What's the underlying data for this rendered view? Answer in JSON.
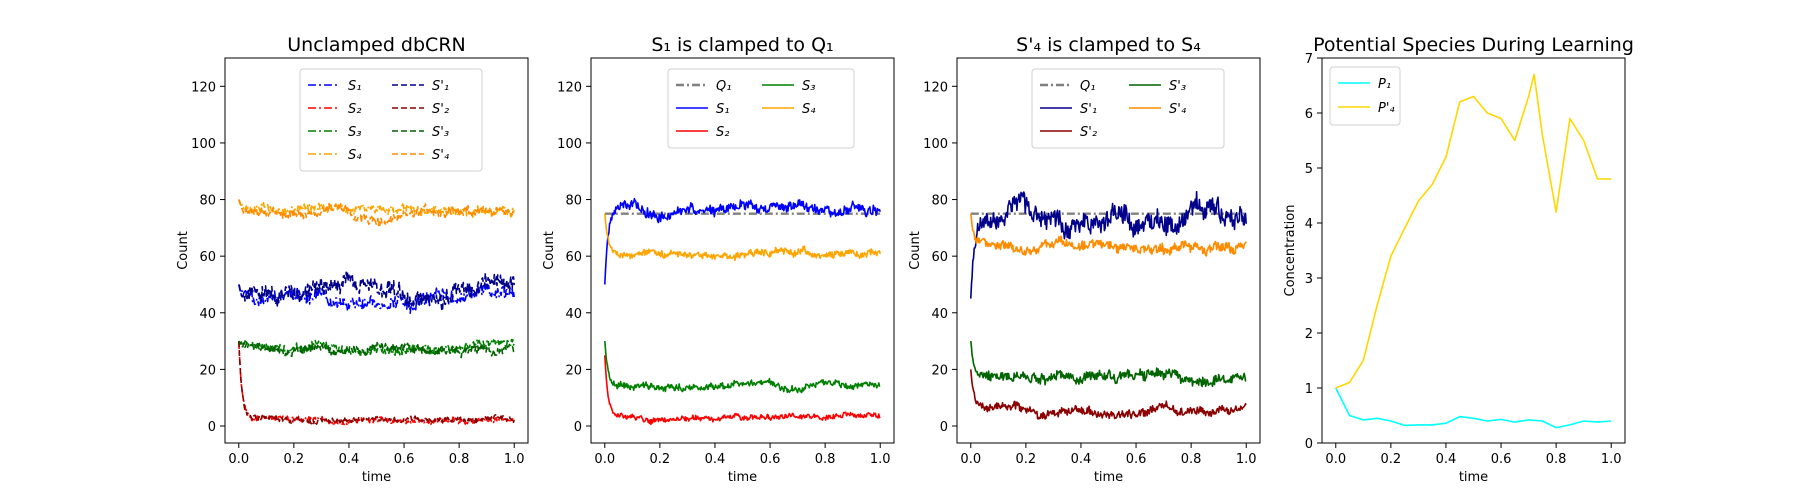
{
  "chart_data": [
    {
      "type": "line",
      "title": "Unclamped dbCRN",
      "xlabel": "time",
      "ylabel": "Count",
      "xlim": [
        -0.05,
        1.05
      ],
      "ylim": [
        -6,
        130
      ],
      "xticks": [
        "0.0",
        "0.2",
        "0.4",
        "0.6",
        "0.8",
        "1.0"
      ],
      "yticks": [
        "0",
        "20",
        "40",
        "60",
        "80",
        "100",
        "120"
      ],
      "legend": {
        "placement": "upper center",
        "columns": 2
      },
      "series": [
        {
          "name": "S₁",
          "color": "#0000ff",
          "dash": "dashdot",
          "start": 50,
          "level": 45,
          "noise": 4
        },
        {
          "name": "S₂",
          "color": "#ff0000",
          "dash": "dashdot",
          "start": 30,
          "level": 2,
          "noise": 1.5
        },
        {
          "name": "S₃",
          "color": "#008000",
          "dash": "dashdot",
          "start": 30,
          "level": 28,
          "noise": 2.5
        },
        {
          "name": "S₄",
          "color": "#ffa500",
          "dash": "dashdot",
          "start": 80,
          "level": 76,
          "noise": 2.5
        },
        {
          "name": "S'₁",
          "color": "#00008b",
          "dash": "dashed",
          "start": 50,
          "level": 47,
          "noise": 5
        },
        {
          "name": "S'₂",
          "color": "#8b0000",
          "dash": "dashed",
          "start": 30,
          "level": 2,
          "noise": 1.5
        },
        {
          "name": "S'₃",
          "color": "#006400",
          "dash": "dashed",
          "start": 30,
          "level": 27,
          "noise": 2.5
        },
        {
          "name": "S'₄",
          "color": "#ff8c00",
          "dash": "dashed",
          "start": 80,
          "level": 75,
          "noise": 2.5
        }
      ]
    },
    {
      "type": "line",
      "title": "S₁ is clamped to Q₁",
      "xlabel": "time",
      "ylabel": "Count",
      "xlim": [
        -0.05,
        1.05
      ],
      "ylim": [
        -6,
        130
      ],
      "xticks": [
        "0.0",
        "0.2",
        "0.4",
        "0.6",
        "0.8",
        "1.0"
      ],
      "yticks": [
        "0",
        "20",
        "40",
        "60",
        "80",
        "100",
        "120"
      ],
      "legend": {
        "placement": "upper center",
        "columns": 2
      },
      "series": [
        {
          "name": "Q₁",
          "color": "#808080",
          "dash": "dashdot",
          "constant": 75
        },
        {
          "name": "S₁",
          "color": "#0000ff",
          "dash": "solid",
          "start": 50,
          "level": 76,
          "noise": 3
        },
        {
          "name": "S₂",
          "color": "#ff0000",
          "dash": "solid",
          "start": 25,
          "level": 3,
          "noise": 1.5
        },
        {
          "name": "S₃",
          "color": "#008000",
          "dash": "solid",
          "start": 30,
          "level": 14,
          "noise": 2
        },
        {
          "name": "S₄",
          "color": "#ffa500",
          "dash": "solid",
          "start": 75,
          "level": 61,
          "noise": 2
        }
      ]
    },
    {
      "type": "line",
      "title": "S'₄ is clamped to S₄",
      "xlabel": "time",
      "ylabel": "Count",
      "xlim": [
        -0.05,
        1.05
      ],
      "ylim": [
        -6,
        130
      ],
      "xticks": [
        "0.0",
        "0.2",
        "0.4",
        "0.6",
        "0.8",
        "1.0"
      ],
      "yticks": [
        "0",
        "20",
        "40",
        "60",
        "80",
        "100",
        "120"
      ],
      "legend": {
        "placement": "upper center",
        "columns": 2
      },
      "series": [
        {
          "name": "Q₁",
          "color": "#808080",
          "dash": "dashdot",
          "constant": 75
        },
        {
          "name": "S'₁",
          "color": "#00008b",
          "dash": "solid",
          "start": 45,
          "level": 72,
          "noise": 6
        },
        {
          "name": "S'₂",
          "color": "#8b0000",
          "dash": "solid",
          "start": 20,
          "level": 5,
          "noise": 2.5
        },
        {
          "name": "S'₃",
          "color": "#006400",
          "dash": "solid",
          "start": 30,
          "level": 17,
          "noise": 3
        },
        {
          "name": "S'₄",
          "color": "#ff8c00",
          "dash": "solid",
          "start": 75,
          "level": 63,
          "noise": 3
        }
      ]
    },
    {
      "type": "line",
      "title": "Potential Species During Learning",
      "xlabel": "time",
      "ylabel": "Concentration",
      "xlim": [
        -0.05,
        1.05
      ],
      "ylim": [
        0,
        7
      ],
      "xticks": [
        "0.0",
        "0.2",
        "0.4",
        "0.6",
        "0.8",
        "1.0"
      ],
      "yticks": [
        "0",
        "1",
        "2",
        "3",
        "4",
        "5",
        "6",
        "7"
      ],
      "legend": {
        "placement": "upper left",
        "columns": 1
      },
      "series": [
        {
          "name": "P₁",
          "color": "#00ffff",
          "dash": "solid",
          "x": [
            0.0,
            0.05,
            0.1,
            0.15,
            0.2,
            0.25,
            0.3,
            0.35,
            0.4,
            0.45,
            0.5,
            0.55,
            0.6,
            0.65,
            0.7,
            0.75,
            0.8,
            0.85,
            0.9,
            0.95,
            1.0
          ],
          "y": [
            1.0,
            0.5,
            0.42,
            0.45,
            0.4,
            0.32,
            0.33,
            0.33,
            0.36,
            0.48,
            0.45,
            0.4,
            0.43,
            0.38,
            0.42,
            0.4,
            0.28,
            0.33,
            0.4,
            0.38,
            0.4
          ]
        },
        {
          "name": "P'₄",
          "color": "#ffd700",
          "dash": "solid",
          "x": [
            0.0,
            0.05,
            0.1,
            0.15,
            0.2,
            0.25,
            0.3,
            0.35,
            0.4,
            0.45,
            0.5,
            0.55,
            0.6,
            0.65,
            0.7,
            0.72,
            0.75,
            0.8,
            0.85,
            0.9,
            0.95,
            1.0
          ],
          "y": [
            1.0,
            1.1,
            1.5,
            2.5,
            3.4,
            3.9,
            4.4,
            4.7,
            5.2,
            6.2,
            6.3,
            6.0,
            5.9,
            5.5,
            6.3,
            6.7,
            5.6,
            4.2,
            5.9,
            5.5,
            4.8,
            4.8
          ]
        }
      ]
    }
  ]
}
